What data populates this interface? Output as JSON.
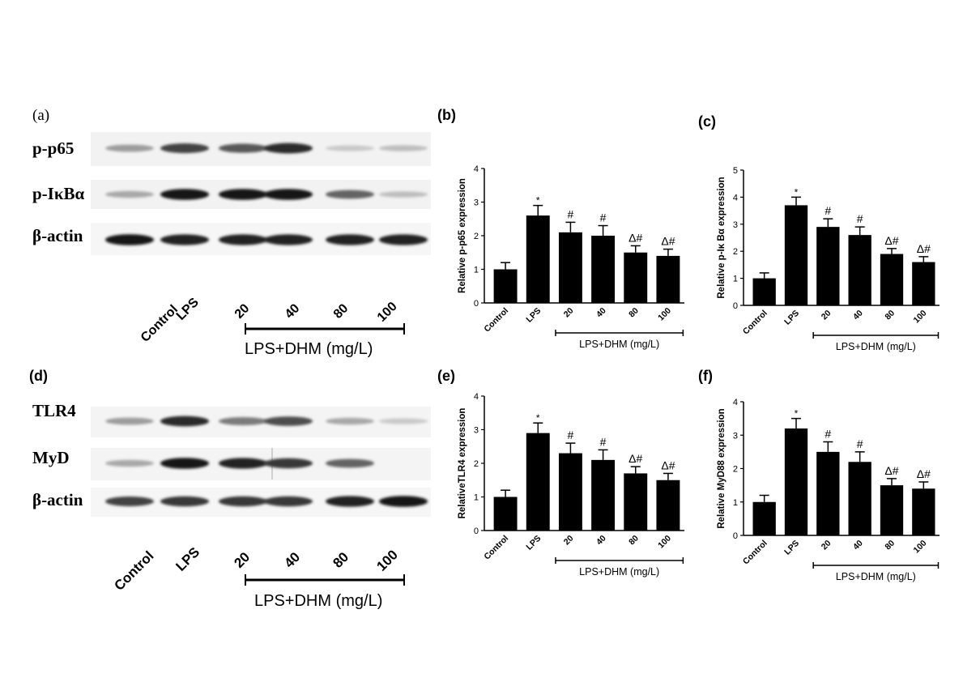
{
  "blot_a": {
    "panel_label": "(a)",
    "rows": [
      "p-p65",
      "p-IκBα",
      "β-actin"
    ],
    "lanes": [
      "Control",
      "LPS",
      "20",
      "40",
      "80",
      "100"
    ],
    "group_label": "LPS+DHM (mg/L)"
  },
  "blot_d": {
    "panel_label": "(d)",
    "rows": [
      "TLR4",
      "MyD",
      "β-actin"
    ],
    "lanes": [
      "Control",
      "LPS",
      "20",
      "40",
      "80",
      "100"
    ],
    "group_label": "LPS+DHM (mg/L)"
  },
  "chart_data": [
    {
      "panel_label": "(b)",
      "type": "bar",
      "categories": [
        "Control",
        "LPS",
        "20",
        "40",
        "80",
        "100"
      ],
      "values": [
        1.0,
        2.6,
        2.1,
        2.0,
        1.5,
        1.4
      ],
      "errors": [
        0.2,
        0.3,
        0.3,
        0.3,
        0.2,
        0.2
      ],
      "annotations": [
        "",
        "*",
        "#",
        "#",
        "Δ#",
        "Δ#"
      ],
      "ylabel": "Relative p-p65 expression",
      "yticks": [
        "0",
        "1",
        "2",
        "3",
        "4"
      ],
      "ylim": [
        0,
        4
      ],
      "group_label": "LPS+DHM (mg/L)"
    },
    {
      "panel_label": "(c)",
      "type": "bar",
      "categories": [
        "Control",
        "LPS",
        "20",
        "40",
        "80",
        "100"
      ],
      "values": [
        1.0,
        3.7,
        2.9,
        2.6,
        1.9,
        1.6
      ],
      "errors": [
        0.2,
        0.3,
        0.3,
        0.3,
        0.2,
        0.2
      ],
      "annotations": [
        "",
        "*",
        "#",
        "#",
        "Δ#",
        "Δ#"
      ],
      "ylabel": "Relative p-Iκ  Bα  expression",
      "yticks": [
        "0",
        "1",
        "2",
        "3",
        "4",
        "5"
      ],
      "ylim": [
        0,
        5
      ],
      "group_label": "LPS+DHM (mg/L)"
    },
    {
      "panel_label": "(e)",
      "type": "bar",
      "categories": [
        "Control",
        "LPS",
        "20",
        "40",
        "80",
        "100"
      ],
      "values": [
        1.0,
        2.9,
        2.3,
        2.1,
        1.7,
        1.5
      ],
      "errors": [
        0.2,
        0.3,
        0.3,
        0.3,
        0.2,
        0.2
      ],
      "annotations": [
        "",
        "*",
        "#",
        "#",
        "Δ#",
        "Δ#"
      ],
      "ylabel": "RelativeTLR4 expression",
      "yticks": [
        "0",
        "1",
        "2",
        "3",
        "4"
      ],
      "ylim": [
        0,
        4
      ],
      "group_label": "LPS+DHM (mg/L)"
    },
    {
      "panel_label": "(f)",
      "type": "bar",
      "categories": [
        "Control",
        "LPS",
        "20",
        "40",
        "80",
        "100"
      ],
      "values": [
        1.0,
        3.2,
        2.5,
        2.2,
        1.5,
        1.4
      ],
      "errors": [
        0.2,
        0.3,
        0.3,
        0.3,
        0.2,
        0.2
      ],
      "annotations": [
        "",
        "*",
        "#",
        "#",
        "Δ#",
        "Δ#"
      ],
      "ylabel": "Relative MyD88 expression",
      "yticks": [
        "0",
        "1",
        "2",
        "3",
        "4"
      ],
      "ylim": [
        0,
        4
      ],
      "group_label": "LPS+DHM (mg/L)"
    }
  ],
  "band_levels": {
    "a": [
      [
        0.35,
        0.75,
        0.65,
        0.85,
        0.15,
        0.2
      ],
      [
        0.3,
        0.95,
        0.95,
        0.95,
        0.6,
        0.2
      ],
      [
        0.95,
        0.9,
        0.9,
        0.9,
        0.9,
        0.9
      ]
    ],
    "d": [
      [
        0.35,
        0.85,
        0.5,
        0.7,
        0.3,
        0.15
      ],
      [
        0.3,
        0.95,
        0.9,
        0.8,
        0.6,
        0.0
      ],
      [
        0.75,
        0.8,
        0.8,
        0.8,
        0.9,
        0.95
      ]
    ]
  }
}
